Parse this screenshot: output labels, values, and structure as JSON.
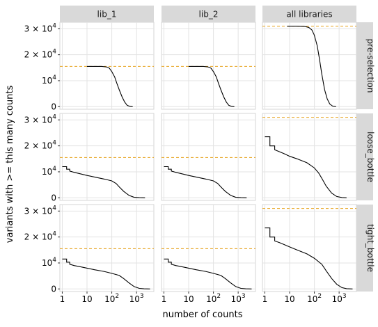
{
  "chart_data": {
    "type": "line",
    "title": "",
    "xlabel": "number of counts",
    "ylabel": "variants with >= this many counts",
    "x_scale": "log",
    "xlim": [
      0.8,
      5000
    ],
    "ylim": [
      -1000,
      32500
    ],
    "x_ticks": [
      {
        "value": 1,
        "base": "1",
        "exp": ""
      },
      {
        "value": 10,
        "base": "10",
        "exp": ""
      },
      {
        "value": 100,
        "base": "10",
        "exp": "2"
      },
      {
        "value": 1000,
        "base": "10",
        "exp": "3"
      }
    ],
    "y_ticks": [
      {
        "value": 0,
        "mant": "",
        "base": "0",
        "exp": ""
      },
      {
        "value": 10000,
        "mant": "",
        "base": "10",
        "exp": "4"
      },
      {
        "value": 20000,
        "mant": "2 × ",
        "base": "10",
        "exp": "4"
      },
      {
        "value": 30000,
        "mant": "3 × ",
        "base": "10",
        "exp": "4"
      }
    ],
    "columns": [
      "lib_1",
      "lib_2",
      "all libraries"
    ],
    "rows": [
      "pre-selection",
      "loose_bottle",
      "tight_bottle"
    ],
    "grid": true,
    "line_color": "#000000",
    "ref_line_color": "#e6a117",
    "strip_color": "#d9d9d9",
    "panels": [
      {
        "row": 0,
        "col": 0,
        "ref_y": 15500,
        "points": [
          [
            10,
            15500
          ],
          [
            20,
            15500
          ],
          [
            40,
            15500
          ],
          [
            60,
            15300
          ],
          [
            80,
            14800
          ],
          [
            100,
            13500
          ],
          [
            130,
            11500
          ],
          [
            160,
            9000
          ],
          [
            200,
            6500
          ],
          [
            260,
            3800
          ],
          [
            330,
            1800
          ],
          [
            420,
            500
          ],
          [
            550,
            80
          ],
          [
            700,
            0
          ]
        ]
      },
      {
        "row": 0,
        "col": 1,
        "ref_y": 15500,
        "points": [
          [
            10,
            15500
          ],
          [
            20,
            15500
          ],
          [
            40,
            15500
          ],
          [
            60,
            15300
          ],
          [
            80,
            14800
          ],
          [
            100,
            13500
          ],
          [
            130,
            11500
          ],
          [
            160,
            9000
          ],
          [
            200,
            6500
          ],
          [
            260,
            3800
          ],
          [
            330,
            1800
          ],
          [
            420,
            500
          ],
          [
            550,
            80
          ],
          [
            700,
            0
          ]
        ]
      },
      {
        "row": 0,
        "col": 2,
        "ref_y": 31000,
        "points": [
          [
            8,
            31000
          ],
          [
            20,
            31000
          ],
          [
            40,
            30900
          ],
          [
            60,
            30500
          ],
          [
            80,
            29500
          ],
          [
            100,
            27500
          ],
          [
            130,
            23500
          ],
          [
            160,
            18500
          ],
          [
            200,
            12500
          ],
          [
            260,
            6500
          ],
          [
            330,
            3000
          ],
          [
            420,
            1000
          ],
          [
            550,
            200
          ],
          [
            750,
            0
          ]
        ]
      },
      {
        "row": 1,
        "col": 0,
        "ref_y": 15500,
        "points": [
          [
            1,
            12000
          ],
          [
            1.5,
            12000
          ],
          [
            1.5,
            11000
          ],
          [
            2,
            11000
          ],
          [
            2,
            10300
          ],
          [
            3,
            9800
          ],
          [
            5,
            9300
          ],
          [
            10,
            8600
          ],
          [
            20,
            8000
          ],
          [
            50,
            7200
          ],
          [
            100,
            6500
          ],
          [
            150,
            5500
          ],
          [
            200,
            4200
          ],
          [
            300,
            2500
          ],
          [
            500,
            900
          ],
          [
            800,
            200
          ],
          [
            1300,
            50
          ],
          [
            2200,
            0
          ]
        ]
      },
      {
        "row": 1,
        "col": 1,
        "ref_y": 15500,
        "points": [
          [
            1,
            12000
          ],
          [
            1.5,
            12000
          ],
          [
            1.5,
            11000
          ],
          [
            2,
            11000
          ],
          [
            2,
            10300
          ],
          [
            3,
            9800
          ],
          [
            5,
            9300
          ],
          [
            10,
            8600
          ],
          [
            20,
            8000
          ],
          [
            50,
            7200
          ],
          [
            100,
            6500
          ],
          [
            150,
            5500
          ],
          [
            200,
            4200
          ],
          [
            300,
            2500
          ],
          [
            500,
            900
          ],
          [
            800,
            200
          ],
          [
            1300,
            50
          ],
          [
            2200,
            0
          ]
        ]
      },
      {
        "row": 1,
        "col": 2,
        "ref_y": 31000,
        "points": [
          [
            1,
            23500
          ],
          [
            1.6,
            23500
          ],
          [
            1.6,
            20000
          ],
          [
            2.5,
            20000
          ],
          [
            2.5,
            18500
          ],
          [
            4,
            17700
          ],
          [
            6,
            17000
          ],
          [
            10,
            16000
          ],
          [
            20,
            15000
          ],
          [
            50,
            13500
          ],
          [
            100,
            11500
          ],
          [
            150,
            9500
          ],
          [
            200,
            7500
          ],
          [
            300,
            4500
          ],
          [
            500,
            1800
          ],
          [
            800,
            500
          ],
          [
            1300,
            100
          ],
          [
            2000,
            0
          ]
        ]
      },
      {
        "row": 2,
        "col": 0,
        "ref_y": 15500,
        "points": [
          [
            1,
            11500
          ],
          [
            1.5,
            11500
          ],
          [
            1.5,
            10300
          ],
          [
            2,
            10300
          ],
          [
            2,
            9500
          ],
          [
            3,
            9000
          ],
          [
            5,
            8600
          ],
          [
            10,
            8000
          ],
          [
            20,
            7400
          ],
          [
            50,
            6700
          ],
          [
            100,
            6000
          ],
          [
            200,
            5200
          ],
          [
            300,
            4000
          ],
          [
            500,
            2300
          ],
          [
            800,
            900
          ],
          [
            1300,
            200
          ],
          [
            2000,
            50
          ],
          [
            3500,
            0
          ]
        ]
      },
      {
        "row": 2,
        "col": 1,
        "ref_y": 15500,
        "points": [
          [
            1,
            11500
          ],
          [
            1.5,
            11500
          ],
          [
            1.5,
            10300
          ],
          [
            2,
            10300
          ],
          [
            2,
            9500
          ],
          [
            3,
            9000
          ],
          [
            5,
            8600
          ],
          [
            10,
            8000
          ],
          [
            20,
            7400
          ],
          [
            50,
            6700
          ],
          [
            100,
            6000
          ],
          [
            200,
            5200
          ],
          [
            300,
            4000
          ],
          [
            500,
            2300
          ],
          [
            800,
            900
          ],
          [
            1300,
            200
          ],
          [
            2000,
            50
          ],
          [
            3500,
            0
          ]
        ]
      },
      {
        "row": 2,
        "col": 2,
        "ref_y": 31000,
        "points": [
          [
            1,
            23500
          ],
          [
            1.6,
            23500
          ],
          [
            1.6,
            20000
          ],
          [
            2.5,
            20000
          ],
          [
            2.5,
            18500
          ],
          [
            4,
            17800
          ],
          [
            6,
            17100
          ],
          [
            10,
            16200
          ],
          [
            20,
            15000
          ],
          [
            50,
            13500
          ],
          [
            100,
            11800
          ],
          [
            200,
            9500
          ],
          [
            300,
            7000
          ],
          [
            500,
            4000
          ],
          [
            800,
            1800
          ],
          [
            1300,
            500
          ],
          [
            2000,
            100
          ],
          [
            3500,
            0
          ]
        ]
      }
    ]
  }
}
